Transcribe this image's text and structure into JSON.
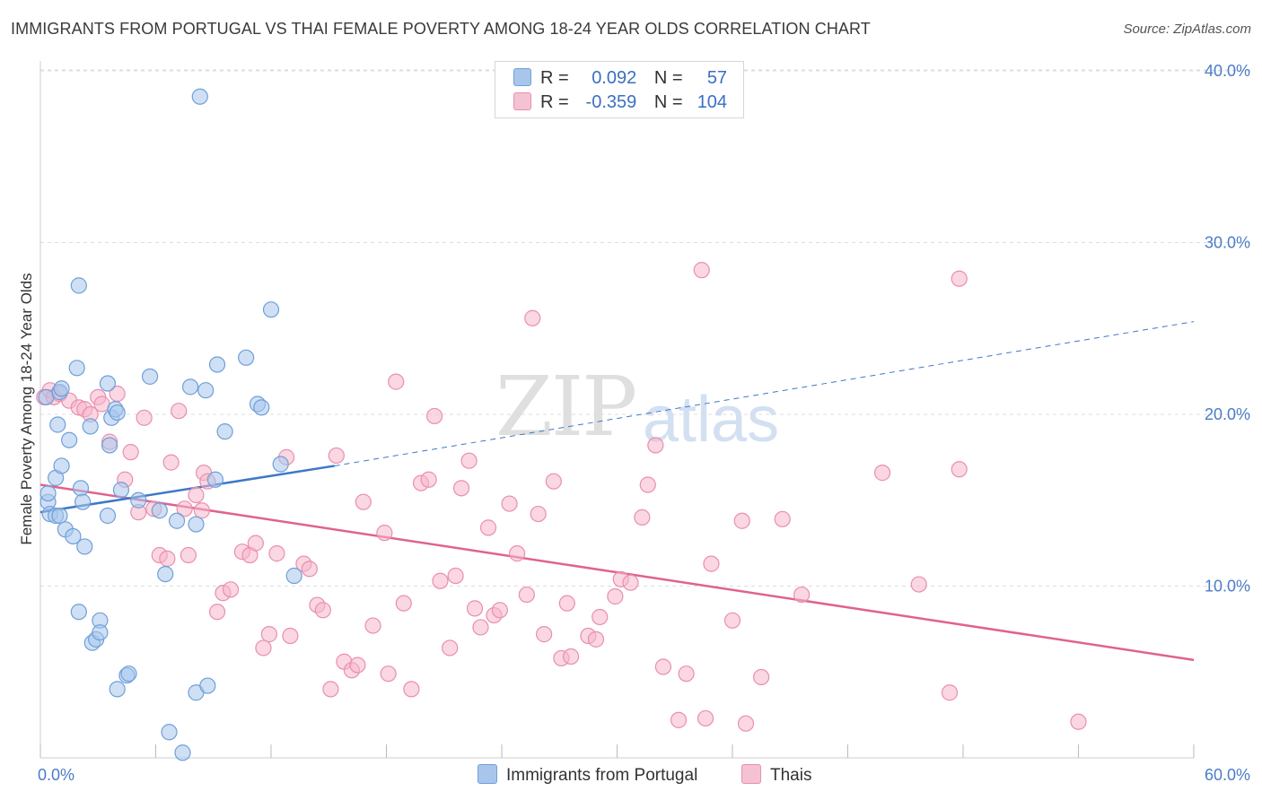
{
  "title": "IMMIGRANTS FROM PORTUGAL VS THAI FEMALE POVERTY AMONG 18-24 YEAR OLDS CORRELATION CHART",
  "source": "Source: ZipAtlas.com",
  "watermark": {
    "zip": "ZIP",
    "atlas": "atlas"
  },
  "legend": {
    "rows": [
      {
        "r_label": "R =",
        "r_value": "0.092",
        "n_label": "N =",
        "n_value": "57"
      },
      {
        "r_label": "R =",
        "r_value": "-0.359",
        "n_label": "N =",
        "n_value": "104"
      }
    ]
  },
  "bottom_legend": [
    "Immigrants from Portugal",
    "Thais"
  ],
  "colors": {
    "blue_fill": "#a8c6ec",
    "blue_stroke": "#6f9fd8",
    "blue_line": "#3d78c8",
    "pink_fill": "#f5b6cb",
    "pink_stroke": "#e98fae",
    "pink_line": "#e0628e",
    "grid": "#dddddd",
    "axis_text": "#4a7cc7"
  },
  "chart_data": {
    "type": "scatter",
    "title": "IMMIGRANTS FROM PORTUGAL VS THAI FEMALE POVERTY AMONG 18-24 YEAR OLDS CORRELATION CHART",
    "xlabel": "",
    "ylabel": "Female Poverty Among 18-24 Year Olds",
    "xlim": [
      0,
      60
    ],
    "ylim": [
      0,
      42
    ],
    "x_tick_labels": [
      "0.0%",
      "60.0%"
    ],
    "y_ticks": [
      10,
      20,
      30,
      40
    ],
    "y_tick_labels": [
      "10.0%",
      "20.0%",
      "30.0%",
      "40.0%"
    ],
    "grid": true,
    "legend_position": "top-center",
    "series": [
      {
        "name": "Immigrants from Portugal",
        "r": 0.092,
        "n": 57,
        "trend": {
          "x": [
            0,
            15.3
          ],
          "y": [
            14.3,
            17.0
          ]
        },
        "trend_extended": {
          "x": [
            15.3,
            60
          ],
          "y": [
            17.0,
            25.4
          ]
        },
        "points": [
          [
            0.3,
            21.0
          ],
          [
            0.4,
            14.9
          ],
          [
            0.4,
            15.4
          ],
          [
            0.5,
            14.2
          ],
          [
            0.8,
            16.3
          ],
          [
            0.8,
            14.1
          ],
          [
            0.9,
            19.4
          ],
          [
            1.0,
            14.1
          ],
          [
            1.1,
            17.0
          ],
          [
            1.3,
            13.3
          ],
          [
            1.5,
            18.5
          ],
          [
            1.7,
            12.9
          ],
          [
            1.9,
            22.7
          ],
          [
            2.0,
            8.5
          ],
          [
            2.1,
            15.7
          ],
          [
            2.2,
            14.9
          ],
          [
            2.3,
            12.3
          ],
          [
            2.7,
            6.7
          ],
          [
            2.9,
            6.9
          ],
          [
            3.1,
            8.0
          ],
          [
            3.1,
            7.3
          ],
          [
            3.5,
            14.1
          ],
          [
            3.7,
            19.8
          ],
          [
            3.9,
            20.3
          ],
          [
            4.0,
            4.0
          ],
          [
            4.2,
            15.6
          ],
          [
            4.5,
            4.8
          ],
          [
            4.6,
            4.9
          ],
          [
            5.1,
            15.0
          ],
          [
            5.7,
            22.2
          ],
          [
            6.2,
            14.4
          ],
          [
            6.5,
            10.7
          ],
          [
            6.7,
            1.5
          ],
          [
            7.1,
            13.8
          ],
          [
            7.4,
            0.3
          ],
          [
            7.8,
            21.6
          ],
          [
            8.1,
            3.8
          ],
          [
            8.1,
            13.6
          ],
          [
            8.6,
            21.4
          ],
          [
            8.7,
            4.2
          ],
          [
            9.2,
            22.9
          ],
          [
            9.6,
            19.0
          ],
          [
            9.1,
            16.2
          ],
          [
            10.7,
            23.3
          ],
          [
            11.3,
            20.6
          ],
          [
            11.5,
            20.4
          ],
          [
            12.0,
            26.1
          ],
          [
            12.5,
            17.1
          ],
          [
            13.2,
            10.6
          ],
          [
            8.3,
            38.5
          ],
          [
            2.0,
            27.5
          ],
          [
            1.0,
            21.3
          ],
          [
            1.1,
            21.5
          ],
          [
            3.5,
            21.8
          ],
          [
            3.6,
            18.2
          ],
          [
            4.0,
            20.1
          ],
          [
            2.6,
            19.3
          ]
        ]
      },
      {
        "name": "Thais",
        "r": -0.359,
        "n": 104,
        "trend": {
          "x": [
            0,
            60
          ],
          "y": [
            15.9,
            5.7
          ]
        },
        "points": [
          [
            0.2,
            21.0
          ],
          [
            0.5,
            21.4
          ],
          [
            0.7,
            21.0
          ],
          [
            1.0,
            21.2
          ],
          [
            1.5,
            20.8
          ],
          [
            2.0,
            20.4
          ],
          [
            2.3,
            20.3
          ],
          [
            2.6,
            20.0
          ],
          [
            3.0,
            21.0
          ],
          [
            3.2,
            20.6
          ],
          [
            3.6,
            18.4
          ],
          [
            4.0,
            21.2
          ],
          [
            4.4,
            16.2
          ],
          [
            4.7,
            17.8
          ],
          [
            5.1,
            14.3
          ],
          [
            5.4,
            19.8
          ],
          [
            5.9,
            14.5
          ],
          [
            6.2,
            11.8
          ],
          [
            6.6,
            11.6
          ],
          [
            6.8,
            17.2
          ],
          [
            7.2,
            20.2
          ],
          [
            7.5,
            14.5
          ],
          [
            7.7,
            11.8
          ],
          [
            8.1,
            15.3
          ],
          [
            8.4,
            14.4
          ],
          [
            8.5,
            16.6
          ],
          [
            8.7,
            16.1
          ],
          [
            9.2,
            8.5
          ],
          [
            9.5,
            9.6
          ],
          [
            9.9,
            9.8
          ],
          [
            10.5,
            12.0
          ],
          [
            10.9,
            11.8
          ],
          [
            11.2,
            12.5
          ],
          [
            11.6,
            6.4
          ],
          [
            11.9,
            7.2
          ],
          [
            12.3,
            11.9
          ],
          [
            12.8,
            17.5
          ],
          [
            13.0,
            7.1
          ],
          [
            13.7,
            11.3
          ],
          [
            14.0,
            11.0
          ],
          [
            14.4,
            8.9
          ],
          [
            14.7,
            8.6
          ],
          [
            15.1,
            4.0
          ],
          [
            15.4,
            17.6
          ],
          [
            15.8,
            5.6
          ],
          [
            16.2,
            5.1
          ],
          [
            16.5,
            5.4
          ],
          [
            16.8,
            14.9
          ],
          [
            17.3,
            7.7
          ],
          [
            17.9,
            13.1
          ],
          [
            18.1,
            4.9
          ],
          [
            18.5,
            21.9
          ],
          [
            18.9,
            9.0
          ],
          [
            19.3,
            4.0
          ],
          [
            19.8,
            16.0
          ],
          [
            20.2,
            16.2
          ],
          [
            20.5,
            19.9
          ],
          [
            20.8,
            10.3
          ],
          [
            21.3,
            6.4
          ],
          [
            21.6,
            10.6
          ],
          [
            21.9,
            15.7
          ],
          [
            22.3,
            17.3
          ],
          [
            22.6,
            8.7
          ],
          [
            22.9,
            7.6
          ],
          [
            23.3,
            13.4
          ],
          [
            23.6,
            8.3
          ],
          [
            23.9,
            8.6
          ],
          [
            24.4,
            14.8
          ],
          [
            24.8,
            11.9
          ],
          [
            25.3,
            9.5
          ],
          [
            25.6,
            25.6
          ],
          [
            25.9,
            14.2
          ],
          [
            26.2,
            7.2
          ],
          [
            26.7,
            16.1
          ],
          [
            27.1,
            5.8
          ],
          [
            27.4,
            9.0
          ],
          [
            27.6,
            5.9
          ],
          [
            28.5,
            7.1
          ],
          [
            28.9,
            6.9
          ],
          [
            29.1,
            8.2
          ],
          [
            29.9,
            9.4
          ],
          [
            30.2,
            10.4
          ],
          [
            30.7,
            10.2
          ],
          [
            31.3,
            14.0
          ],
          [
            31.6,
            15.9
          ],
          [
            32.0,
            18.2
          ],
          [
            32.4,
            5.3
          ],
          [
            33.2,
            2.2
          ],
          [
            33.6,
            4.9
          ],
          [
            34.4,
            28.4
          ],
          [
            34.6,
            2.3
          ],
          [
            34.9,
            11.3
          ],
          [
            36.0,
            8.0
          ],
          [
            36.5,
            13.8
          ],
          [
            36.7,
            2.0
          ],
          [
            37.5,
            4.7
          ],
          [
            38.6,
            13.9
          ],
          [
            39.6,
            9.5
          ],
          [
            43.8,
            16.6
          ],
          [
            45.7,
            10.1
          ],
          [
            47.8,
            27.9
          ],
          [
            47.3,
            3.8
          ],
          [
            47.8,
            16.8
          ],
          [
            54.0,
            2.1
          ]
        ]
      }
    ]
  }
}
